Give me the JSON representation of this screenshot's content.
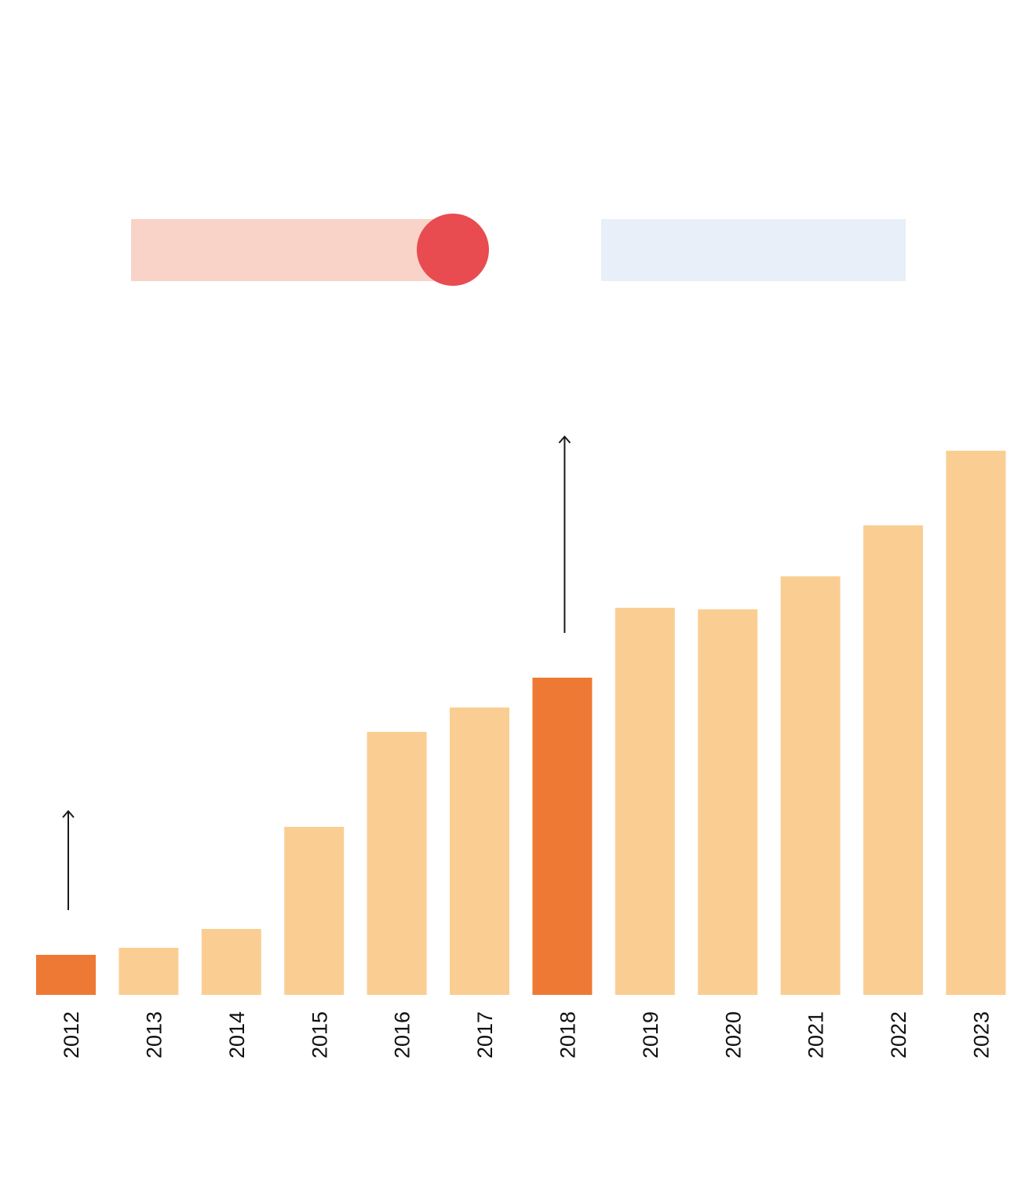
{
  "colors": {
    "bar": "#FACE93",
    "highlight": "#EE7934",
    "legend_pink": "#F9D3C8",
    "legend_blue": "#E8EFF8",
    "marker": "#E84B50",
    "arrow": "#1a1a1a",
    "label": "#111111"
  },
  "chart_data": {
    "type": "bar",
    "title": "",
    "xlabel": "",
    "ylabel": "",
    "categories": [
      "2012",
      "2013",
      "2014",
      "2015",
      "2016",
      "2017",
      "2018",
      "2019",
      "2020",
      "2021",
      "2022",
      "2023"
    ],
    "values": [
      51,
      60,
      84,
      214,
      335,
      366,
      404,
      493,
      491,
      533,
      598,
      693
    ],
    "ylim": [
      0,
      700
    ],
    "highlighted": [
      "2012",
      "2018"
    ],
    "annotations": [
      {
        "category": "2012",
        "type": "arrow-up"
      },
      {
        "category": "2018",
        "type": "arrow-up"
      }
    ],
    "grid": false,
    "legend": {
      "placement": "top",
      "entries": [
        {
          "swatch": "pink-bar-with-red-dot",
          "label": ""
        },
        {
          "swatch": "light-blue-bar",
          "label": ""
        }
      ]
    }
  }
}
